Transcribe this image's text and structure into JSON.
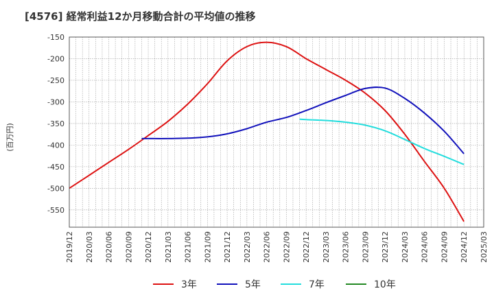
{
  "chart_data": {
    "type": "line",
    "title": "[4576]  経常利益12か月移動合計の平均値の推移",
    "ylabel": "(百万円)",
    "xlabel": "",
    "ylim": [
      -590,
      -150
    ],
    "yticks": [
      -150,
      -200,
      -250,
      -300,
      -350,
      -400,
      -450,
      -500,
      -550
    ],
    "x_tick_labels": [
      "2019/12",
      "2020/03",
      "2020/06",
      "2020/09",
      "2020/12",
      "2021/03",
      "2021/06",
      "2021/09",
      "2021/12",
      "2022/03",
      "2022/06",
      "2022/09",
      "2022/12",
      "2023/03",
      "2023/06",
      "2023/09",
      "2023/12",
      "2024/03",
      "2024/06",
      "2024/09",
      "2024/12",
      "2025/03"
    ],
    "grid": true,
    "legend_position": "bottom",
    "series": [
      {
        "name": "3年",
        "color": "#dd1111",
        "x": [
          "2019/12",
          "2020/03",
          "2020/06",
          "2020/09",
          "2020/12",
          "2021/03",
          "2021/06",
          "2021/09",
          "2021/12",
          "2022/03",
          "2022/06",
          "2022/09",
          "2022/12",
          "2023/03",
          "2023/06",
          "2023/09",
          "2023/12",
          "2024/03",
          "2024/06",
          "2024/09",
          "2024/12"
        ],
        "values": [
          -500,
          -470,
          -440,
          -410,
          -378,
          -345,
          -305,
          -258,
          -205,
          -172,
          -162,
          -172,
          -200,
          -225,
          -250,
          -280,
          -320,
          -375,
          -438,
          -500,
          -577
        ]
      },
      {
        "name": "5年",
        "color": "#1111bb",
        "x": [
          "2020/11",
          "2020/12",
          "2021/03",
          "2021/06",
          "2021/09",
          "2021/12",
          "2022/03",
          "2022/06",
          "2022/09",
          "2022/12",
          "2023/03",
          "2023/06",
          "2023/09",
          "2023/12",
          "2024/03",
          "2024/06",
          "2024/09",
          "2024/12"
        ],
        "values": [
          -385,
          -385,
          -385,
          -384,
          -381,
          -374,
          -362,
          -347,
          -336,
          -320,
          -302,
          -285,
          -269,
          -268,
          -292,
          -326,
          -368,
          -420
        ]
      },
      {
        "name": "7年",
        "color": "#22dddd",
        "x": [
          "2022/11",
          "2022/12",
          "2023/03",
          "2023/06",
          "2023/09",
          "2023/12",
          "2024/03",
          "2024/06",
          "2024/09",
          "2024/12"
        ],
        "values": [
          -340,
          -341,
          -343,
          -347,
          -354,
          -367,
          -387,
          -408,
          -426,
          -445
        ]
      },
      {
        "name": "10年",
        "color": "#228822",
        "x": [],
        "values": []
      }
    ]
  }
}
